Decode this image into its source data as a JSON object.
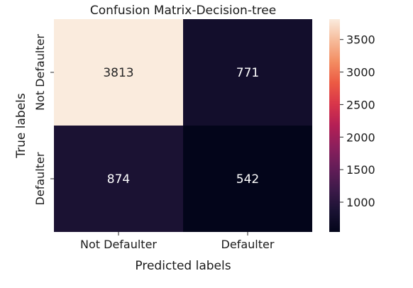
{
  "chart_data": {
    "type": "heatmap",
    "title": "Confusion Matrix-Decision-tree",
    "xlabel": "Predicted labels",
    "ylabel": "True labels",
    "x_categories": [
      "Not Defaulter",
      "Defaulter"
    ],
    "y_categories": [
      "Not Defaulter",
      "Defaulter"
    ],
    "values": [
      [
        3813,
        771
      ],
      [
        874,
        542
      ]
    ],
    "colorbar": {
      "min": 542,
      "max": 3813,
      "ticks": [
        1000,
        1500,
        2000,
        2500,
        3000,
        3500
      ],
      "colormap": "rocket"
    }
  }
}
